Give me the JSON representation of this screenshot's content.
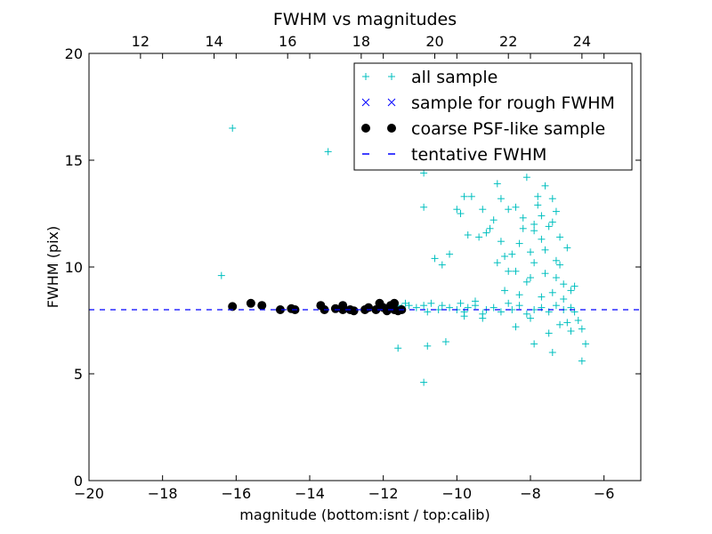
{
  "chart_data": {
    "type": "scatter",
    "title": "FWHM vs magnitudes",
    "xlabel": "magnitude (bottom:isnt / top:calib)",
    "ylabel": "FWHM (pix)",
    "xlim": [
      -20,
      -5
    ],
    "ylim": [
      0,
      20
    ],
    "x_ticks": [
      -20,
      -18,
      -16,
      -14,
      -12,
      -10,
      -8,
      -6
    ],
    "x_tick_labels": [
      "−20",
      "−18",
      "−16",
      "−14",
      "−12",
      "−10",
      "−8",
      "−6"
    ],
    "y_ticks": [
      0,
      5,
      10,
      15,
      20
    ],
    "y_tick_labels": [
      "0",
      "5",
      "10",
      "15",
      "20"
    ],
    "top_axis": {
      "offset": 30.6,
      "ticks": [
        12,
        14,
        16,
        18,
        20,
        22,
        24
      ],
      "tick_labels": [
        "12",
        "14",
        "16",
        "18",
        "20",
        "22",
        "24"
      ]
    },
    "grid": false,
    "legend_position": "top-right",
    "series": [
      {
        "name": "all sample",
        "marker": "plus",
        "color": "#00BFBF",
        "points": [
          [
            -16.1,
            16.5
          ],
          [
            -13.5,
            15.4
          ],
          [
            -16.4,
            9.6
          ],
          [
            -11.6,
            6.2
          ],
          [
            -10.9,
            4.6
          ],
          [
            -10.8,
            6.3
          ],
          [
            -10.3,
            6.5
          ],
          [
            -11.6,
            8.2
          ],
          [
            -11.5,
            8.1
          ],
          [
            -11.4,
            8.3
          ],
          [
            -11.3,
            8.2
          ],
          [
            -11.1,
            8.1
          ],
          [
            -10.9,
            8.2
          ],
          [
            -10.8,
            7.9
          ],
          [
            -10.7,
            8.3
          ],
          [
            -10.5,
            8.0
          ],
          [
            -10.4,
            8.2
          ],
          [
            -10.2,
            8.1
          ],
          [
            -10.0,
            8.0
          ],
          [
            -9.9,
            8.3
          ],
          [
            -9.8,
            7.9
          ],
          [
            -9.7,
            8.1
          ],
          [
            -9.5,
            8.2
          ],
          [
            -9.3,
            7.8
          ],
          [
            -9.2,
            8.0
          ],
          [
            -9.0,
            8.1
          ],
          [
            -8.8,
            7.9
          ],
          [
            -8.6,
            8.3
          ],
          [
            -8.5,
            8.0
          ],
          [
            -8.3,
            8.2
          ],
          [
            -8.1,
            7.8
          ],
          [
            -7.9,
            8.0
          ],
          [
            -7.7,
            8.1
          ],
          [
            -7.5,
            7.9
          ],
          [
            -7.3,
            8.2
          ],
          [
            -7.1,
            8.0
          ],
          [
            -6.9,
            8.1
          ],
          [
            -6.8,
            7.9
          ],
          [
            -10.9,
            14.4
          ],
          [
            -10.9,
            12.8
          ],
          [
            -10.6,
            10.4
          ],
          [
            -10.4,
            10.1
          ],
          [
            -10.0,
            12.7
          ],
          [
            -9.9,
            12.5
          ],
          [
            -9.8,
            13.3
          ],
          [
            -9.6,
            13.3
          ],
          [
            -9.4,
            11.4
          ],
          [
            -9.3,
            12.7
          ],
          [
            -9.2,
            11.6
          ],
          [
            -9.1,
            11.8
          ],
          [
            -9.0,
            12.2
          ],
          [
            -8.9,
            13.9
          ],
          [
            -8.8,
            11.2
          ],
          [
            -8.7,
            10.5
          ],
          [
            -8.6,
            9.8
          ],
          [
            -8.5,
            10.6
          ],
          [
            -8.4,
            12.8
          ],
          [
            -8.3,
            11.1
          ],
          [
            -8.2,
            12.3
          ],
          [
            -8.1,
            14.2
          ],
          [
            -8.0,
            9.5
          ],
          [
            -7.9,
            11.7
          ],
          [
            -7.8,
            13.3
          ],
          [
            -7.7,
            12.4
          ],
          [
            -7.6,
            10.8
          ],
          [
            -7.5,
            14.9
          ],
          [
            -7.4,
            12.1
          ],
          [
            -7.3,
            10.3
          ],
          [
            -7.2,
            11.4
          ],
          [
            -7.1,
            9.2
          ],
          [
            -7.0,
            10.9
          ],
          [
            -6.9,
            8.9
          ],
          [
            -6.8,
            9.1
          ],
          [
            -8.3,
            8.7
          ],
          [
            -8.1,
            9.3
          ],
          [
            -7.9,
            10.2
          ],
          [
            -7.7,
            8.6
          ],
          [
            -7.6,
            9.7
          ],
          [
            -7.4,
            8.8
          ],
          [
            -7.3,
            9.5
          ],
          [
            -7.1,
            8.5
          ],
          [
            -7.0,
            7.4
          ],
          [
            -6.9,
            7.0
          ],
          [
            -6.7,
            7.5
          ],
          [
            -6.6,
            7.1
          ],
          [
            -6.5,
            6.4
          ],
          [
            -6.6,
            5.6
          ],
          [
            -7.4,
            6.0
          ],
          [
            -7.9,
            6.4
          ],
          [
            -7.5,
            6.9
          ],
          [
            -7.2,
            7.3
          ],
          [
            -8.0,
            7.6
          ],
          [
            -8.4,
            7.2
          ],
          [
            -9.3,
            7.6
          ],
          [
            -9.8,
            7.7
          ],
          [
            -8.7,
            8.9
          ],
          [
            -9.5,
            8.4
          ],
          [
            -8.9,
            10.2
          ],
          [
            -7.8,
            12.9
          ],
          [
            -7.6,
            13.8
          ],
          [
            -7.5,
            11.9
          ],
          [
            -7.4,
            13.2
          ],
          [
            -7.3,
            12.6
          ],
          [
            -7.7,
            11.3
          ],
          [
            -7.9,
            12.0
          ],
          [
            -8.0,
            10.7
          ],
          [
            -8.2,
            11.8
          ],
          [
            -8.6,
            12.7
          ],
          [
            -8.8,
            13.2
          ],
          [
            -9.7,
            11.5
          ],
          [
            -10.2,
            10.6
          ],
          [
            -8.4,
            9.8
          ],
          [
            -7.2,
            10.1
          ]
        ]
      },
      {
        "name": "sample for rough FWHM",
        "marker": "x",
        "color": "#0000FF",
        "points": []
      },
      {
        "name": "coarse PSF-like sample",
        "marker": "circle",
        "color": "#000000",
        "points": [
          [
            -16.1,
            8.15
          ],
          [
            -15.6,
            8.3
          ],
          [
            -15.3,
            8.2
          ],
          [
            -14.8,
            8.0
          ],
          [
            -14.5,
            8.05
          ],
          [
            -14.4,
            8.0
          ],
          [
            -13.7,
            8.2
          ],
          [
            -13.6,
            8.0
          ],
          [
            -13.3,
            8.05
          ],
          [
            -13.1,
            8.2
          ],
          [
            -13.1,
            8.0
          ],
          [
            -12.9,
            8.0
          ],
          [
            -12.8,
            7.95
          ],
          [
            -12.5,
            8.0
          ],
          [
            -12.4,
            8.1
          ],
          [
            -12.2,
            8.0
          ],
          [
            -12.1,
            8.3
          ],
          [
            -12.0,
            8.1
          ],
          [
            -11.9,
            7.95
          ],
          [
            -11.8,
            8.2
          ],
          [
            -11.7,
            8.3
          ],
          [
            -11.7,
            8.0
          ],
          [
            -11.6,
            7.95
          ],
          [
            -11.5,
            8.0
          ]
        ]
      },
      {
        "name": "tentative FWHM",
        "type": "hline",
        "linestyle": "dashed",
        "color": "#0000FF",
        "y": 8.0
      }
    ]
  }
}
